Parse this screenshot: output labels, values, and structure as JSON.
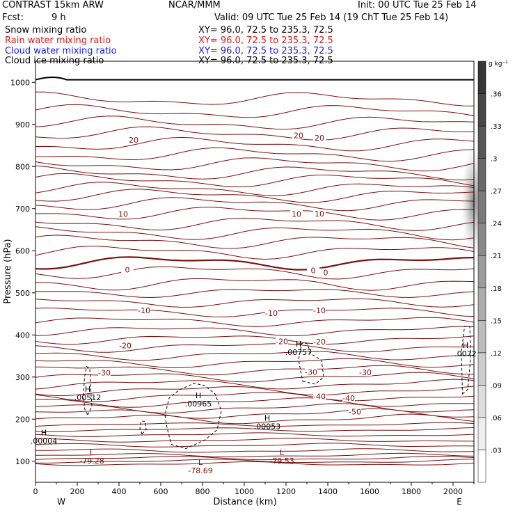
{
  "header": {
    "model": "CONTRAST 15km ARW",
    "org": "NCAR/MMM",
    "init": "Init: 00 UTC Tue 25 Feb 14",
    "fcst_label": "Fcst:",
    "fcst_value": "9 h",
    "valid": "Valid: 09 UTC Tue 25 Feb 14 (19 ChT Tue 25 Feb 14)"
  },
  "fields": [
    {
      "label": "Snow mixing ratio",
      "xy": "XY=  96.0, 72.5 to 235.3, 72.5",
      "color": "#000000"
    },
    {
      "label": "Rain water mixing ratio",
      "xy": "XY=  96.0, 72.5 to 235.3, 72.5",
      "color": "#d41e1e"
    },
    {
      "label": "Cloud water mixing ratio",
      "xy": "XY=  96.0, 72.5 to 235.3, 72.5",
      "color": "#1c1cd4"
    },
    {
      "label": "Cloud ice mixing ratio",
      "xy": "XY=  96.0, 72.5 to 235.3, 72.5",
      "color": "#000000"
    }
  ],
  "chart_data": {
    "type": "contour",
    "xlabel": "Distance (km)",
    "ylabel": "Pressure (hPa)",
    "xlim": [
      0,
      2100
    ],
    "ylim": [
      1050,
      50
    ],
    "x_ticks": [
      0,
      200,
      400,
      600,
      800,
      1000,
      1200,
      1400,
      1600,
      1800,
      2000
    ],
    "y_ticks": [
      100,
      200,
      300,
      400,
      500,
      600,
      700,
      800,
      900,
      1000
    ],
    "endpoints": {
      "left": "W",
      "right": "E"
    },
    "colorbar": {
      "unit": "g kg⁻¹",
      "ticks": [
        ".03",
        ".06",
        ".09",
        ".12",
        ".15",
        ".18",
        ".21",
        ".24",
        ".27",
        ".3",
        ".33",
        ".36"
      ]
    },
    "temperature_labels": [
      {
        "text": "-50",
        "x": 1530,
        "p": 218
      },
      {
        "text": "-40",
        "x": 1360,
        "p": 254
      },
      {
        "text": "-40",
        "x": 1500,
        "p": 250
      },
      {
        "text": "-30",
        "x": 330,
        "p": 310
      },
      {
        "text": "-30",
        "x": 1320,
        "p": 312
      },
      {
        "text": "-30",
        "x": 1580,
        "p": 311
      },
      {
        "text": "-20",
        "x": 430,
        "p": 375
      },
      {
        "text": "-20",
        "x": 1180,
        "p": 385
      },
      {
        "text": "-20",
        "x": 1360,
        "p": 384
      },
      {
        "text": "-10",
        "x": 520,
        "p": 458
      },
      {
        "text": "-10",
        "x": 1130,
        "p": 452
      },
      {
        "text": "-10",
        "x": 1360,
        "p": 458
      },
      {
        "text": "0",
        "x": 440,
        "p": 555
      },
      {
        "text": "0",
        "x": 1330,
        "p": 553
      },
      {
        "text": "0",
        "x": 1390,
        "p": 548
      },
      {
        "text": "10",
        "x": 420,
        "p": 687
      },
      {
        "text": "10",
        "x": 1250,
        "p": 687
      },
      {
        "text": "10",
        "x": 1360,
        "p": 688
      },
      {
        "text": "20",
        "x": 470,
        "p": 863
      },
      {
        "text": "20",
        "x": 1260,
        "p": 874
      },
      {
        "text": "20",
        "x": 1360,
        "p": 868
      }
    ],
    "extrema": [
      {
        "mark": "L",
        "value": "-79.28",
        "x": 270,
        "p": 108
      },
      {
        "mark": "L",
        "value": "-78.69",
        "x": 790,
        "p": 85
      },
      {
        "mark": "L",
        "value": "-79.53",
        "x": 1180,
        "p": 108
      },
      {
        "mark": "H",
        "value": ".00004",
        "x": 40,
        "p": 155
      },
      {
        "mark": "H",
        "value": ".00053",
        "x": 1110,
        "p": 190
      },
      {
        "mark": "H",
        "value": ".00965",
        "x": 780,
        "p": 243
      },
      {
        "mark": "H",
        "value": ".00512",
        "x": 250,
        "p": 258
      },
      {
        "mark": "H",
        "value": ".00757",
        "x": 1260,
        "p": 366
      },
      {
        "mark": "H",
        "value": ".0072",
        "x": 2060,
        "p": 362
      }
    ]
  }
}
